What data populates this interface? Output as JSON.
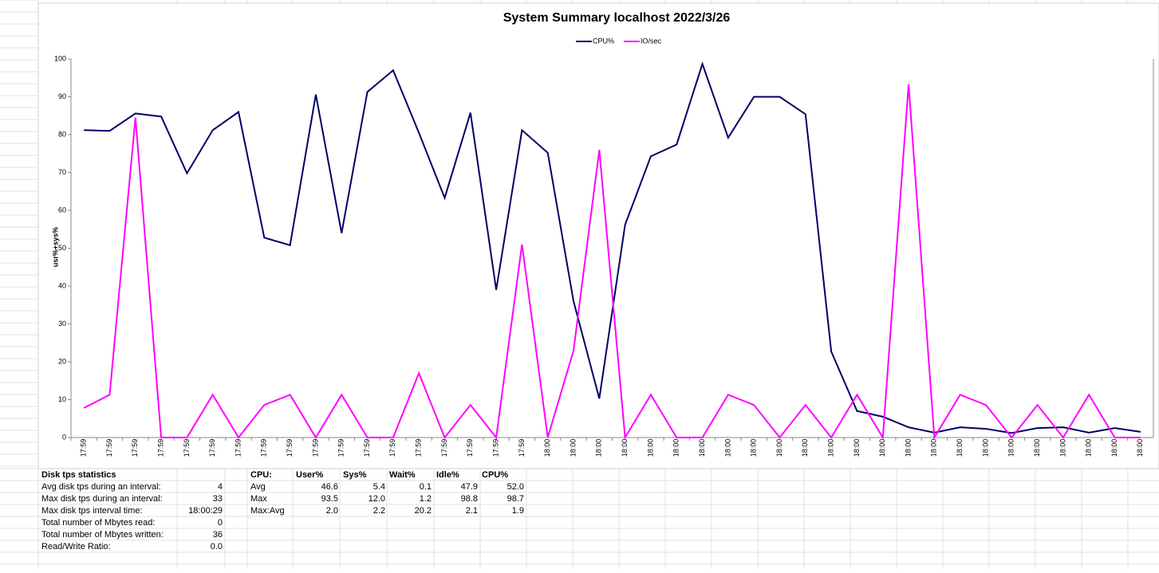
{
  "chart_data": {
    "type": "line",
    "title": "System Summary localhost  2022/3/26",
    "y_label": "usr%+sys%",
    "categories": [
      "17:59",
      "17:59",
      "17:59",
      "17:59",
      "17:59",
      "17:59",
      "17:59",
      "17:59",
      "17:59",
      "17:59",
      "17:59",
      "17:59",
      "17:59",
      "17:59",
      "17:59",
      "17:59",
      "17:59",
      "17:59",
      "18:00",
      "18:00",
      "18:00",
      "18:00",
      "18:00",
      "18:00",
      "18:00",
      "18:00",
      "18:00",
      "18:00",
      "18:00",
      "18:00",
      "18:00",
      "18:00",
      "18:00",
      "18:00",
      "18:00",
      "18:00",
      "18:00",
      "18:00",
      "18:00",
      "18:00",
      "18:00",
      "18:00"
    ],
    "series": [
      {
        "name": "CPU%",
        "color": "#000066",
        "values": [
          81.2,
          81,
          85.6,
          84.8,
          69.8,
          81.2,
          86,
          52.8,
          50.8,
          90.6,
          54,
          91.3,
          97,
          80.5,
          63.3,
          85.8,
          39,
          81.2,
          75.2,
          36,
          10.3,
          56.2,
          74.3,
          77.4,
          98.7,
          79.2,
          90,
          90,
          85.4,
          22.7,
          7,
          5.5,
          2.7,
          1.3,
          2.7,
          2.3,
          1.2,
          2.5,
          2.7,
          1.3,
          2.5,
          1.5
        ]
      },
      {
        "name": "IO/sec",
        "color": "#ff00ff",
        "values": [
          7.8,
          11.3,
          84.5,
          0,
          0,
          11.3,
          0,
          8.6,
          11.3,
          0,
          11.3,
          0,
          0,
          17,
          0,
          8.6,
          0,
          51,
          0,
          23,
          76,
          0,
          11.3,
          0,
          0,
          11.3,
          8.6,
          0,
          8.6,
          0,
          11.3,
          0,
          93.3,
          0,
          11.3,
          8.6,
          0,
          8.6,
          0,
          11.3,
          0,
          0
        ]
      }
    ],
    "ylim": [
      0,
      100
    ],
    "yticks": [
      0,
      10,
      20,
      30,
      40,
      50,
      60,
      70,
      80,
      90,
      100
    ],
    "grid": false,
    "legend": "top"
  },
  "disk_table": {
    "title": "Disk tps statistics",
    "rows": [
      [
        "Avg disk tps during an interval:",
        "4"
      ],
      [
        "Max disk tps during an interval:",
        "33"
      ],
      [
        "Max disk tps interval time:",
        "18:00:29"
      ],
      [
        "Total number of Mbytes read:",
        "0"
      ],
      [
        "Total number of Mbytes written:",
        "36"
      ],
      [
        "Read/Write Ratio:",
        "0.0"
      ]
    ]
  },
  "cpu_table": {
    "header": [
      "CPU:",
      "User%",
      "Sys%",
      "Wait%",
      "Idle%",
      "CPU%"
    ],
    "rows": [
      [
        "Avg",
        "46.6",
        "5.4",
        "0.1",
        "47.9",
        "52.0"
      ],
      [
        "Max",
        "93.5",
        "12.0",
        "1.2",
        "98.8",
        "98.7"
      ],
      [
        "Max:Avg",
        "2.0",
        "2.2",
        "20.2",
        "2.1",
        "1.9"
      ]
    ]
  }
}
